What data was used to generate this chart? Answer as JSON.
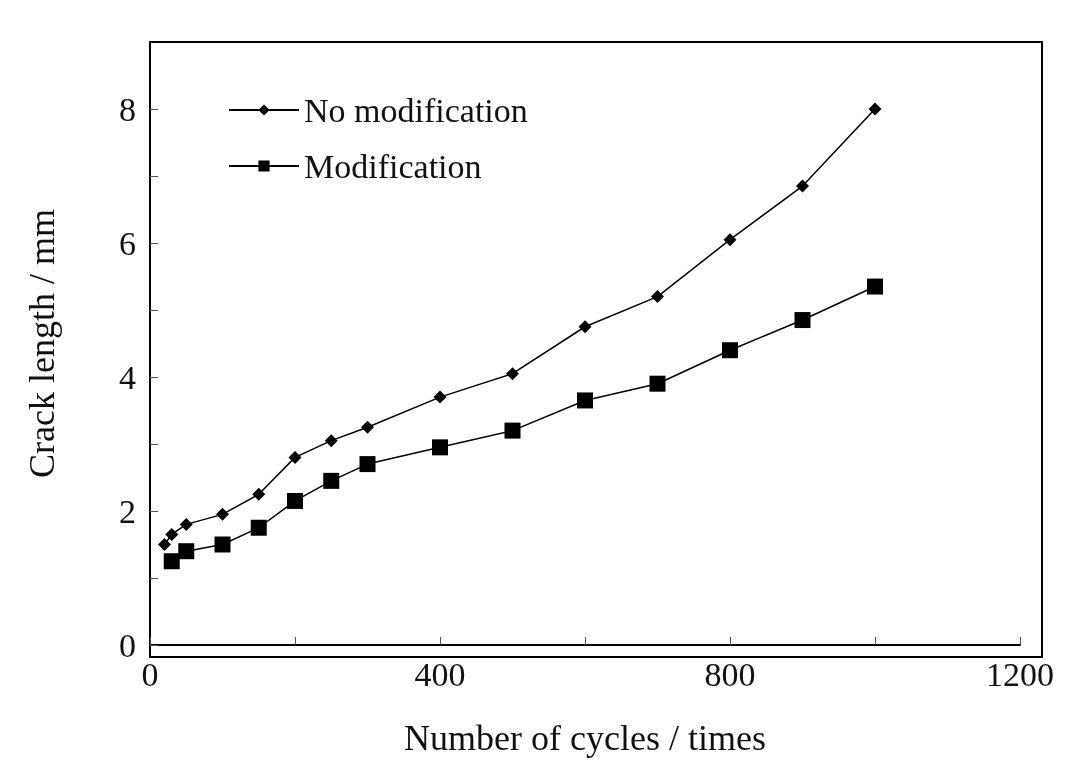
{
  "chart_data": {
    "type": "line",
    "xlabel": "Number of cycles / times",
    "ylabel": "Crack length / mm",
    "xlim": [
      0,
      1200
    ],
    "xticks": [
      0,
      {
        "value": 200,
        "label": null
      },
      400,
      {
        "value": 600,
        "label": null
      },
      800,
      {
        "value": 1000,
        "label": null
      },
      1200
    ],
    "ylim": [
      0,
      9
    ],
    "yticks": [
      0,
      {
        "value": 1,
        "label": null
      },
      2,
      {
        "value": 3,
        "label": null
      },
      4,
      {
        "value": 5,
        "label": null
      },
      6,
      {
        "value": 7,
        "label": null
      },
      8
    ],
    "grid": false,
    "legend": "top left",
    "line_style": "solid",
    "series": [
      {
        "name": "No modification",
        "color": "#000000",
        "marker": "diamond",
        "x": [
          20,
          30,
          50,
          100,
          150,
          200,
          250,
          300,
          400,
          500,
          600,
          700,
          800,
          900,
          1000
        ],
        "values": [
          1.5,
          1.65,
          1.8,
          1.95,
          2.25,
          2.8,
          3.05,
          3.25,
          3.7,
          4.05,
          4.75,
          5.2,
          6.05,
          6.85,
          8.0
        ]
      },
      {
        "name": "Modification",
        "color": "#000000",
        "marker": "square",
        "x": [
          30,
          50,
          100,
          150,
          200,
          250,
          300,
          400,
          500,
          600,
          700,
          800,
          900,
          1000
        ],
        "values": [
          1.25,
          1.4,
          1.5,
          1.75,
          2.15,
          2.45,
          2.7,
          2.95,
          3.2,
          3.65,
          3.9,
          4.4,
          4.85,
          5.35
        ]
      }
    ]
  }
}
